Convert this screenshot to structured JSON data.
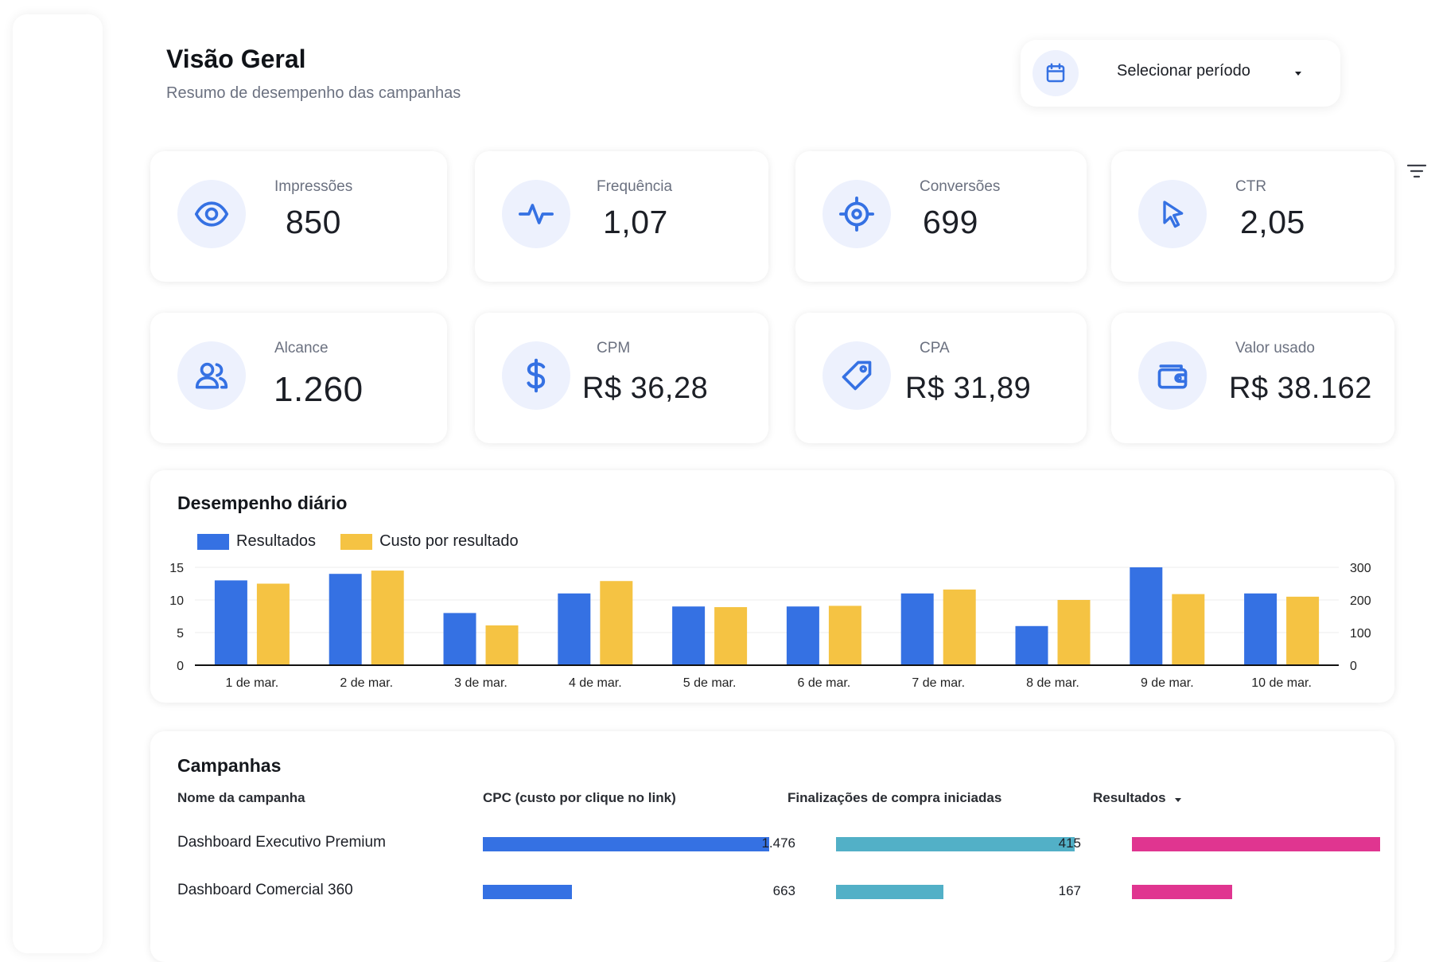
{
  "header": {
    "title": "Visão Geral",
    "subtitle": "Resumo de desempenho das campanhas",
    "period_label": "Selecionar período",
    "period_icon": "calendar-icon",
    "filter_icon": "filter-icon"
  },
  "kpis": [
    {
      "label": "Impressões",
      "value": "850",
      "icon": "eye-icon"
    },
    {
      "label": "Frequência",
      "value": "1,07",
      "icon": "activity-icon"
    },
    {
      "label": "Conversões",
      "value": "699",
      "icon": "target-icon"
    },
    {
      "label": "CTR",
      "value": "2,05",
      "icon": "cursor-icon"
    },
    {
      "label": "Alcance",
      "value": "1.260",
      "icon": "users-icon"
    },
    {
      "label": "CPM",
      "value": "R$ 36,28",
      "icon": "dollar-icon"
    },
    {
      "label": "CPA",
      "value": "R$ 31,89",
      "icon": "tag-icon"
    },
    {
      "label": "Valor usado",
      "value": "R$ 38.162",
      "icon": "wallet-icon"
    }
  ],
  "colors": {
    "accent": "#3571e3",
    "series_results": "#3571e3",
    "series_cost": "#f5c343",
    "cpc_bar": "#3571e3",
    "checkout_bar": "#52b0c7",
    "results_bar": "#e03590",
    "icon_bg": "#edf1fd"
  },
  "chart_data": {
    "type": "bar",
    "title": "Desempenho diário",
    "categories": [
      "1 de mar.",
      "2 de mar.",
      "3 de mar.",
      "4 de mar.",
      "5 de mar.",
      "6 de mar.",
      "7 de mar.",
      "8 de mar.",
      "9 de mar.",
      "10 de mar."
    ],
    "series": [
      {
        "name": "Resultados",
        "axis": "left",
        "values": [
          13,
          14,
          8,
          11,
          9,
          9,
          11,
          6,
          15,
          11
        ]
      },
      {
        "name": "Custo por resultado",
        "axis": "right",
        "values": [
          250,
          290,
          122,
          258,
          178,
          182,
          232,
          200,
          218,
          210
        ]
      }
    ],
    "y_left": {
      "range": [
        0,
        15
      ],
      "ticks": [
        "0",
        "5",
        "10",
        "15"
      ]
    },
    "y_right": {
      "range": [
        0,
        300
      ],
      "ticks": [
        "0",
        "100",
        "200",
        "300"
      ]
    },
    "grid": true,
    "legend_position": "top-left"
  },
  "table": {
    "title": "Campanhas",
    "columns": [
      "Nome da campanha",
      "CPC (custo por clique no link)",
      "Finalizações de compra iniciadas",
      "Resultados"
    ],
    "sorted_column": "Resultados",
    "rows": [
      {
        "name": "Dashboard Executivo Premium",
        "cpc": 1.0,
        "checkouts": 1476,
        "checkouts_label": "1.476",
        "results": 415,
        "results_label": "415"
      },
      {
        "name": "Dashboard Comercial 360",
        "cpc": 0.31,
        "checkouts": 663,
        "checkouts_label": "663",
        "results": 167,
        "results_label": "167"
      }
    ]
  }
}
